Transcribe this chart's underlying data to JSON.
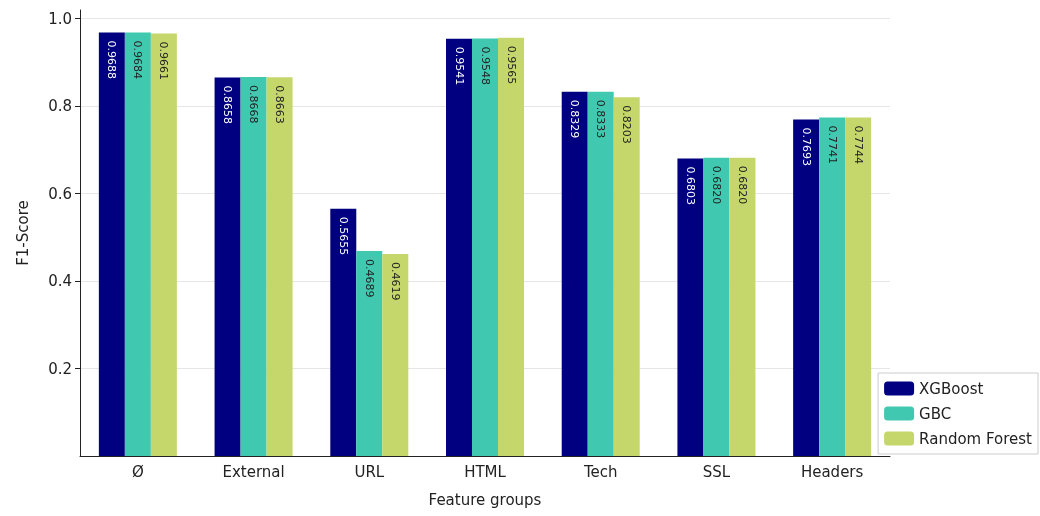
{
  "chart_data": {
    "type": "bar",
    "xlabel": "Feature groups",
    "ylabel": "F1-Score",
    "categories": [
      "Ø",
      "External",
      "URL",
      "HTML",
      "Tech",
      "SSL",
      "Headers"
    ],
    "series": [
      {
        "name": "XGBoost",
        "color": "#000080",
        "values": [
          0.9688,
          0.8658,
          0.5655,
          0.9541,
          0.8329,
          0.6803,
          0.7693
        ],
        "value_labels": [
          "0.9688",
          "0.8658",
          "0.5655",
          "0.9541",
          "0.8329",
          "0.6803",
          "0.7693"
        ]
      },
      {
        "name": "GBC",
        "color": "#40c9b0",
        "values": [
          0.9684,
          0.8668,
          0.4689,
          0.9548,
          0.8333,
          0.682,
          0.7741
        ],
        "value_labels": [
          "0.9684",
          "0.8668",
          "0.4689",
          "0.9548",
          "0.8333",
          "0.6820",
          "0.7741"
        ]
      },
      {
        "name": "Random Forest",
        "color": "#c5d66b",
        "values": [
          0.9661,
          0.8663,
          0.4619,
          0.9565,
          0.8203,
          0.682,
          0.7744
        ],
        "value_labels": [
          "0.9661",
          "0.8663",
          "0.4619",
          "0.9565",
          "0.8203",
          "0.6820",
          "0.7744"
        ]
      }
    ],
    "ylim": [
      0,
      1.02
    ],
    "yticks": [
      0.2,
      0.4,
      0.6,
      0.8,
      {
        "value": 1,
        "label": "1.0"
      }
    ],
    "grid": "y",
    "legend": "bottom right"
  }
}
